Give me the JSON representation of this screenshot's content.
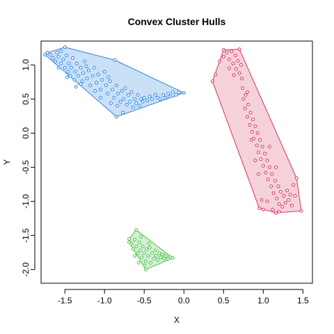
{
  "chart_data": {
    "type": "scatter",
    "title": "Convex Cluster Hulls",
    "xlabel": "X",
    "ylabel": "Y",
    "xlim": [
      -1.8,
      1.62
    ],
    "ylim": [
      -2.2,
      1.35
    ],
    "xticks": [
      -1.5,
      -1.0,
      -0.5,
      0.0,
      0.5,
      1.0,
      1.5
    ],
    "xtick_labels": [
      "-1.5",
      "-1.0",
      "-0.5",
      "0.0",
      "0.5",
      "1.0",
      "1.5"
    ],
    "yticks": [
      -2.0,
      -1.5,
      -1.0,
      -0.5,
      0.0,
      0.5,
      1.0
    ],
    "ytick_labels": [
      "-2.0",
      "-1.5",
      "-1.0",
      "-0.5",
      "0.0",
      "0.5",
      "1.0"
    ],
    "grid": false,
    "legend": "none",
    "series": [
      {
        "color": "#2E86DE",
        "fill": "#C9E0F7",
        "hull": [
          [
            -1.72,
            1.18
          ],
          [
            -1.5,
            1.26
          ],
          [
            -0.87,
            1.07
          ],
          [
            0.0,
            0.59
          ],
          [
            -0.85,
            0.24
          ],
          [
            -1.75,
            1.15
          ]
        ],
        "points": [
          [
            -1.72,
            1.18
          ],
          [
            -1.5,
            1.26
          ],
          [
            -0.87,
            1.07
          ],
          [
            0.0,
            0.59
          ],
          [
            -0.85,
            0.24
          ],
          [
            -1.75,
            1.15
          ],
          [
            -1.68,
            1.15
          ],
          [
            -1.65,
            1.1
          ],
          [
            -1.62,
            1.05
          ],
          [
            -1.6,
            1.18
          ],
          [
            -1.58,
            1.12
          ],
          [
            -1.55,
            1.2
          ],
          [
            -1.55,
            1.02
          ],
          [
            -1.52,
            1.08
          ],
          [
            -1.5,
            0.96
          ],
          [
            -1.48,
            1.14
          ],
          [
            -1.46,
            0.9
          ],
          [
            -1.45,
            1.02
          ],
          [
            -1.43,
            0.84
          ],
          [
            -1.42,
            0.96
          ],
          [
            -1.4,
            1.1
          ],
          [
            -1.38,
            0.78
          ],
          [
            -1.37,
            0.9
          ],
          [
            -1.35,
            1.02
          ],
          [
            -1.33,
            0.84
          ],
          [
            -1.3,
            0.96
          ],
          [
            -1.28,
            0.76
          ],
          [
            -1.27,
            0.88
          ],
          [
            -1.25,
            1.05
          ],
          [
            -1.22,
            0.8
          ],
          [
            -1.2,
            0.92
          ],
          [
            -1.18,
            0.7
          ],
          [
            -1.15,
            0.84
          ],
          [
            -1.13,
            0.96
          ],
          [
            -1.1,
            0.74
          ],
          [
            -1.08,
            0.86
          ],
          [
            -1.05,
            0.64
          ],
          [
            -1.03,
            0.78
          ],
          [
            -1.0,
            0.9
          ],
          [
            -0.98,
            0.7
          ],
          [
            -0.96,
            0.58
          ],
          [
            -0.93,
            0.76
          ],
          [
            -0.9,
            0.64
          ],
          [
            -0.88,
            0.52
          ],
          [
            -0.85,
            0.7
          ],
          [
            -0.83,
            0.58
          ],
          [
            -0.8,
            0.46
          ],
          [
            -0.78,
            0.62
          ],
          [
            -0.76,
            0.5
          ],
          [
            -0.74,
            0.66
          ],
          [
            -0.72,
            0.42
          ],
          [
            -0.7,
            0.56
          ],
          [
            -0.68,
            0.46
          ],
          [
            -0.66,
            0.6
          ],
          [
            -0.64,
            0.38
          ],
          [
            -0.62,
            0.5
          ],
          [
            -0.6,
            0.44
          ],
          [
            -0.58,
            0.56
          ],
          [
            -0.56,
            0.4
          ],
          [
            -0.54,
            0.5
          ],
          [
            -0.52,
            0.46
          ],
          [
            -0.5,
            0.52
          ],
          [
            -0.46,
            0.48
          ],
          [
            -0.43,
            0.54
          ],
          [
            -0.4,
            0.5
          ],
          [
            -0.36,
            0.56
          ],
          [
            -0.33,
            0.52
          ],
          [
            -0.3,
            0.5
          ],
          [
            -0.26,
            0.56
          ],
          [
            -0.23,
            0.52
          ],
          [
            -0.2,
            0.58
          ],
          [
            -0.17,
            0.54
          ],
          [
            -0.14,
            0.6
          ],
          [
            -0.1,
            0.56
          ],
          [
            -0.06,
            0.6
          ],
          [
            -1.36,
            0.68
          ],
          [
            -1.47,
            0.82
          ],
          [
            -1.23,
            0.98
          ],
          [
            -1.12,
            0.62
          ],
          [
            -0.95,
            0.82
          ],
          [
            -0.84,
            0.4
          ],
          [
            -0.77,
            0.3
          ],
          [
            -1.58,
            0.96
          ],
          [
            -1.3,
            0.72
          ],
          [
            -1.05,
            0.52
          ],
          [
            -0.92,
            0.44
          ]
        ]
      },
      {
        "color": "#D6335B",
        "fill": "#F5D2DA",
        "hull": [
          [
            0.36,
            0.76
          ],
          [
            0.5,
            1.22
          ],
          [
            0.7,
            1.23
          ],
          [
            1.42,
            -0.66
          ],
          [
            1.48,
            -1.14
          ],
          [
            1.16,
            -1.17
          ],
          [
            0.95,
            -1.1
          ],
          [
            0.36,
            0.76
          ]
        ],
        "points": [
          [
            0.36,
            0.76
          ],
          [
            0.5,
            1.22
          ],
          [
            0.7,
            1.23
          ],
          [
            1.42,
            -0.66
          ],
          [
            1.48,
            -1.14
          ],
          [
            1.16,
            -1.17
          ],
          [
            0.95,
            -1.1
          ],
          [
            0.4,
            0.86
          ],
          [
            0.45,
            1.05
          ],
          [
            0.5,
            1.12
          ],
          [
            0.54,
            1.18
          ],
          [
            0.57,
            1.08
          ],
          [
            0.6,
            1.2
          ],
          [
            0.62,
            1.02
          ],
          [
            0.65,
            1.14
          ],
          [
            0.66,
            0.94
          ],
          [
            0.68,
            1.06
          ],
          [
            0.7,
            0.88
          ],
          [
            0.72,
            1.0
          ],
          [
            0.73,
            0.8
          ],
          [
            0.74,
            0.66
          ],
          [
            0.75,
            0.5
          ],
          [
            0.77,
            0.36
          ],
          [
            0.78,
            0.56
          ],
          [
            0.8,
            0.24
          ],
          [
            0.81,
            0.42
          ],
          [
            0.83,
            0.12
          ],
          [
            0.84,
            0.3
          ],
          [
            0.86,
            0.02
          ],
          [
            0.87,
            0.2
          ],
          [
            0.88,
            -0.08
          ],
          [
            0.9,
            0.1
          ],
          [
            0.92,
            -0.18
          ],
          [
            0.93,
            0.0
          ],
          [
            0.94,
            -0.28
          ],
          [
            0.96,
            -0.1
          ],
          [
            0.97,
            -0.38
          ],
          [
            0.99,
            -0.2
          ],
          [
            1.0,
            -0.48
          ],
          [
            1.02,
            -0.3
          ],
          [
            1.03,
            -0.58
          ],
          [
            1.05,
            -0.4
          ],
          [
            1.06,
            -0.68
          ],
          [
            1.08,
            -0.5
          ],
          [
            1.1,
            -0.78
          ],
          [
            1.11,
            -0.6
          ],
          [
            1.13,
            -0.88
          ],
          [
            1.15,
            -0.7
          ],
          [
            1.17,
            -0.96
          ],
          [
            1.19,
            -0.78
          ],
          [
            1.2,
            -1.04
          ],
          [
            1.22,
            -0.86
          ],
          [
            1.24,
            -1.08
          ],
          [
            1.26,
            -0.92
          ],
          [
            1.28,
            -1.02
          ],
          [
            1.3,
            -0.84
          ],
          [
            1.32,
            -0.98
          ],
          [
            1.34,
            -0.9
          ],
          [
            1.36,
            -1.06
          ],
          [
            1.38,
            -0.76
          ],
          [
            1.4,
            -0.92
          ],
          [
            1.0,
            -1.12
          ],
          [
            1.05,
            -1.0
          ],
          [
            1.12,
            -1.12
          ],
          [
            1.2,
            -1.15
          ],
          [
            0.98,
            -0.98
          ],
          [
            0.9,
            -0.4
          ],
          [
            0.85,
            -0.1
          ],
          [
            0.8,
            0.6
          ],
          [
            0.63,
            0.85
          ],
          [
            0.57,
            0.95
          ],
          [
            0.94,
            -0.6
          ],
          [
            1.08,
            -0.2
          ],
          [
            1.16,
            -0.5
          ]
        ]
      },
      {
        "color": "#4CBF4A",
        "fill": "#D3F0D2",
        "hull": [
          [
            -0.69,
            -1.55
          ],
          [
            -0.6,
            -1.42
          ],
          [
            -0.14,
            -1.83
          ],
          [
            -0.48,
            -2.0
          ],
          [
            -0.69,
            -1.6
          ]
        ],
        "points": [
          [
            -0.69,
            -1.55
          ],
          [
            -0.6,
            -1.42
          ],
          [
            -0.14,
            -1.83
          ],
          [
            -0.48,
            -2.0
          ],
          [
            -0.69,
            -1.6
          ],
          [
            -0.66,
            -1.62
          ],
          [
            -0.64,
            -1.7
          ],
          [
            -0.62,
            -1.56
          ],
          [
            -0.6,
            -1.66
          ],
          [
            -0.58,
            -1.76
          ],
          [
            -0.56,
            -1.6
          ],
          [
            -0.55,
            -1.72
          ],
          [
            -0.53,
            -1.82
          ],
          [
            -0.52,
            -1.66
          ],
          [
            -0.5,
            -1.76
          ],
          [
            -0.48,
            -1.88
          ],
          [
            -0.47,
            -1.7
          ],
          [
            -0.45,
            -1.8
          ],
          [
            -0.43,
            -1.68
          ],
          [
            -0.42,
            -1.9
          ],
          [
            -0.4,
            -1.76
          ],
          [
            -0.38,
            -1.84
          ],
          [
            -0.36,
            -1.72
          ],
          [
            -0.35,
            -1.8
          ],
          [
            -0.33,
            -1.86
          ],
          [
            -0.31,
            -1.76
          ],
          [
            -0.29,
            -1.82
          ],
          [
            -0.27,
            -1.78
          ],
          [
            -0.25,
            -1.84
          ],
          [
            -0.23,
            -1.8
          ],
          [
            -0.2,
            -1.84
          ],
          [
            -0.17,
            -1.82
          ],
          [
            -0.57,
            -1.9
          ],
          [
            -0.62,
            -1.8
          ],
          [
            -0.5,
            -1.94
          ],
          [
            -0.44,
            -1.62
          ],
          [
            -0.54,
            -1.52
          ]
        ]
      }
    ]
  }
}
